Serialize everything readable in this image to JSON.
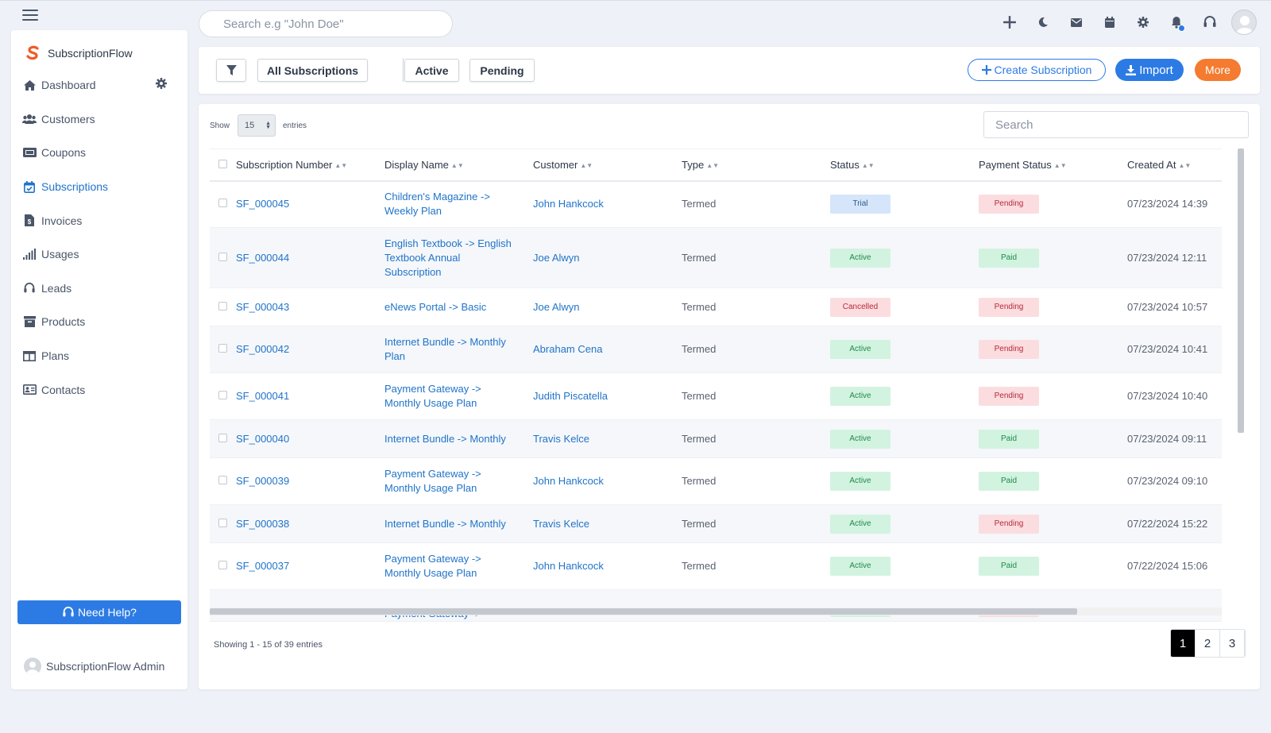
{
  "topbar": {
    "search_placeholder": "Search e.g \"John Doe\""
  },
  "sidebar": {
    "brand": "SubscriptionFlow",
    "items": [
      {
        "label": "Dashboard",
        "icon": "home-icon"
      },
      {
        "label": "Customers",
        "icon": "users-icon"
      },
      {
        "label": "Coupons",
        "icon": "ticket-icon"
      },
      {
        "label": "Subscriptions",
        "icon": "calendar-check-icon",
        "active": true
      },
      {
        "label": "Invoices",
        "icon": "invoice-icon"
      },
      {
        "label": "Usages",
        "icon": "signal-bars-icon"
      },
      {
        "label": "Leads",
        "icon": "headset-icon"
      },
      {
        "label": "Products",
        "icon": "archive-box-icon"
      },
      {
        "label": "Plans",
        "icon": "columns-icon"
      },
      {
        "label": "Contacts",
        "icon": "address-card-icon"
      }
    ],
    "help_label": "Need Help?",
    "admin_name": "SubscriptionFlow Admin"
  },
  "filterbar": {
    "all_label": "All Subscriptions",
    "active_label": "Active",
    "pending_label": "Pending",
    "create_label": "Create Subscription",
    "import_label": "Import",
    "more_label": "More"
  },
  "table": {
    "show_label": "Show",
    "page_size": "15",
    "entries_label": "entries",
    "search_placeholder": "Search",
    "columns": [
      "Subscription Number",
      "Display Name",
      "Customer",
      "Type",
      "Status",
      "Payment Status",
      "Created At"
    ],
    "rows": [
      {
        "number": "SF_000045",
        "name": [
          "Children's Magazine ->",
          "Weekly Plan"
        ],
        "customer": "John Hankcock",
        "type": "Termed",
        "status": "Trial",
        "payment": "Pending",
        "created": "07/23/2024 14:39"
      },
      {
        "number": "SF_000044",
        "name": [
          "English Textbook -> English",
          "Textbook Annual",
          "Subscription"
        ],
        "customer": "Joe Alwyn",
        "type": "Termed",
        "status": "Active",
        "payment": "Paid",
        "created": "07/23/2024 12:11"
      },
      {
        "number": "SF_000043",
        "name": [
          "eNews Portal -> Basic"
        ],
        "customer": "Joe Alwyn",
        "type": "Termed",
        "status": "Cancelled",
        "payment": "Pending",
        "created": "07/23/2024 10:57"
      },
      {
        "number": "SF_000042",
        "name": [
          "Internet Bundle -> Monthly",
          "Plan"
        ],
        "customer": "Abraham Cena",
        "type": "Termed",
        "status": "Active",
        "payment": "Pending",
        "created": "07/23/2024 10:41"
      },
      {
        "number": "SF_000041",
        "name": [
          "Payment Gateway ->",
          "Monthly Usage Plan"
        ],
        "customer": "Judith Piscatella",
        "type": "Termed",
        "status": "Active",
        "payment": "Pending",
        "created": "07/23/2024 10:40"
      },
      {
        "number": "SF_000040",
        "name": [
          "Internet Bundle -> Monthly"
        ],
        "customer": "Travis Kelce",
        "type": "Termed",
        "status": "Active",
        "payment": "Paid",
        "created": "07/23/2024 09:11"
      },
      {
        "number": "SF_000039",
        "name": [
          "Payment Gateway ->",
          "Monthly Usage Plan"
        ],
        "customer": "John Hankcock",
        "type": "Termed",
        "status": "Active",
        "payment": "Paid",
        "created": "07/23/2024 09:10"
      },
      {
        "number": "SF_000038",
        "name": [
          "Internet Bundle -> Monthly"
        ],
        "customer": "Travis Kelce",
        "type": "Termed",
        "status": "Active",
        "payment": "Pending",
        "created": "07/22/2024 15:22"
      },
      {
        "number": "SF_000037",
        "name": [
          "Payment Gateway ->",
          "Monthly Usage Plan"
        ],
        "customer": "John Hankcock",
        "type": "Termed",
        "status": "Active",
        "payment": "Paid",
        "created": "07/22/2024 15:06"
      },
      {
        "number": "",
        "name": [
          "Payment Gateway ->"
        ],
        "customer": "",
        "type": "",
        "status": "Active",
        "payment": "Pending",
        "created": ""
      }
    ],
    "showing_text": "Showing 1 - 15 of 39 entries",
    "pages": [
      "1",
      "2",
      "3"
    ],
    "current_page": "1",
    "prev_label": "‹",
    "next_label": "›"
  },
  "colors": {
    "accent": "#2c7be5",
    "link": "#2174c9",
    "more": "#f47b2f"
  }
}
